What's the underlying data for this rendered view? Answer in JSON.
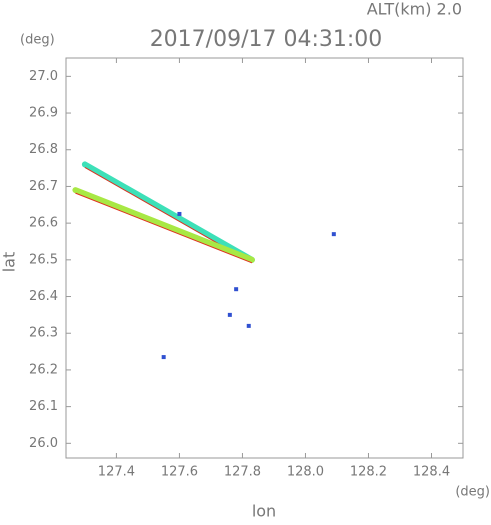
{
  "chart_data": {
    "type": "scatter",
    "title": "2017/09/17 04:31:00",
    "subtitle": "ALT(km)  2.0",
    "x_label": "lon",
    "x_unit": "(deg)",
    "y_label": "lat",
    "y_unit": "(deg)",
    "xlim": [
      127.24,
      128.5
    ],
    "ylim": [
      25.96,
      27.05
    ],
    "xticks": [
      {
        "value": 127.4,
        "label": "127.4"
      },
      {
        "value": 127.6,
        "label": "127.6"
      },
      {
        "value": 127.8,
        "label": "127.8"
      },
      {
        "value": 128.0,
        "label": "128.0"
      },
      {
        "value": 128.2,
        "label": "128.2"
      },
      {
        "value": 128.4,
        "label": "128.4"
      }
    ],
    "yticks": [
      {
        "value": 26.0,
        "label": "26.0"
      },
      {
        "value": 26.1,
        "label": "26.1"
      },
      {
        "value": 26.2,
        "label": "26.2"
      },
      {
        "value": 26.3,
        "label": "26.3"
      },
      {
        "value": 26.4,
        "label": "26.4"
      },
      {
        "value": 26.5,
        "label": "26.5"
      },
      {
        "value": 26.6,
        "label": "26.6"
      },
      {
        "value": 26.7,
        "label": "26.7"
      },
      {
        "value": 26.8,
        "label": "26.8"
      },
      {
        "value": 26.9,
        "label": "26.9"
      },
      {
        "value": 27.0,
        "label": "27.0"
      }
    ],
    "series": [
      {
        "color": "#3de0b8",
        "mode": "line",
        "x": [
          127.3,
          127.83
        ],
        "y": [
          26.76,
          26.5
        ]
      },
      {
        "color": "#a8e844",
        "mode": "line",
        "x": [
          127.27,
          127.83
        ],
        "y": [
          26.69,
          26.5
        ]
      },
      {
        "color": "#3050d0",
        "mode": "points",
        "x": [
          127.6,
          127.78,
          127.76,
          127.82,
          127.55,
          128.09
        ],
        "y": [
          26.625,
          26.42,
          26.35,
          26.32,
          26.235,
          26.57
        ]
      }
    ]
  }
}
